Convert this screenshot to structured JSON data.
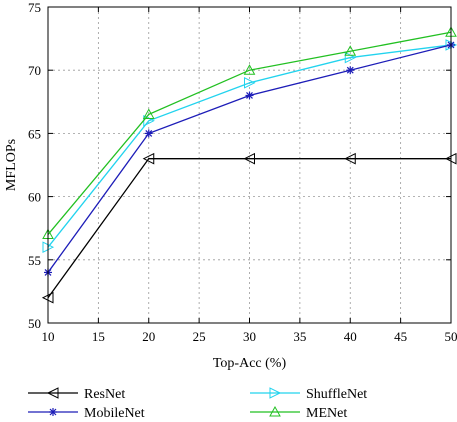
{
  "chart_data": {
    "type": "line",
    "xlabel": "Top-Acc (%)",
    "ylabel": "MFLOPs",
    "xlim": [
      10,
      50
    ],
    "ylim": [
      50,
      75
    ],
    "xticks": [
      10,
      15,
      20,
      25,
      30,
      35,
      40,
      45,
      50
    ],
    "yticks": [
      50,
      55,
      60,
      65,
      70,
      75
    ],
    "grid": true,
    "legend_position": "bottom",
    "x": [
      10,
      20,
      30,
      40,
      50
    ],
    "series": [
      {
        "name": "ResNet",
        "values": [
          52,
          63,
          63,
          63,
          63
        ],
        "color": "#000000",
        "marker": "triangle-left"
      },
      {
        "name": "ShuffleNet",
        "values": [
          56,
          66,
          69,
          71,
          72
        ],
        "color": "#22d3ee",
        "marker": "triangle-right"
      },
      {
        "name": "MobileNet",
        "values": [
          54,
          65,
          68,
          70,
          72
        ],
        "color": "#1d1db8",
        "marker": "star"
      },
      {
        "name": "MENet",
        "values": [
          57,
          66.5,
          70,
          71.5,
          73
        ],
        "color": "#22c022",
        "marker": "triangle-up"
      }
    ]
  }
}
